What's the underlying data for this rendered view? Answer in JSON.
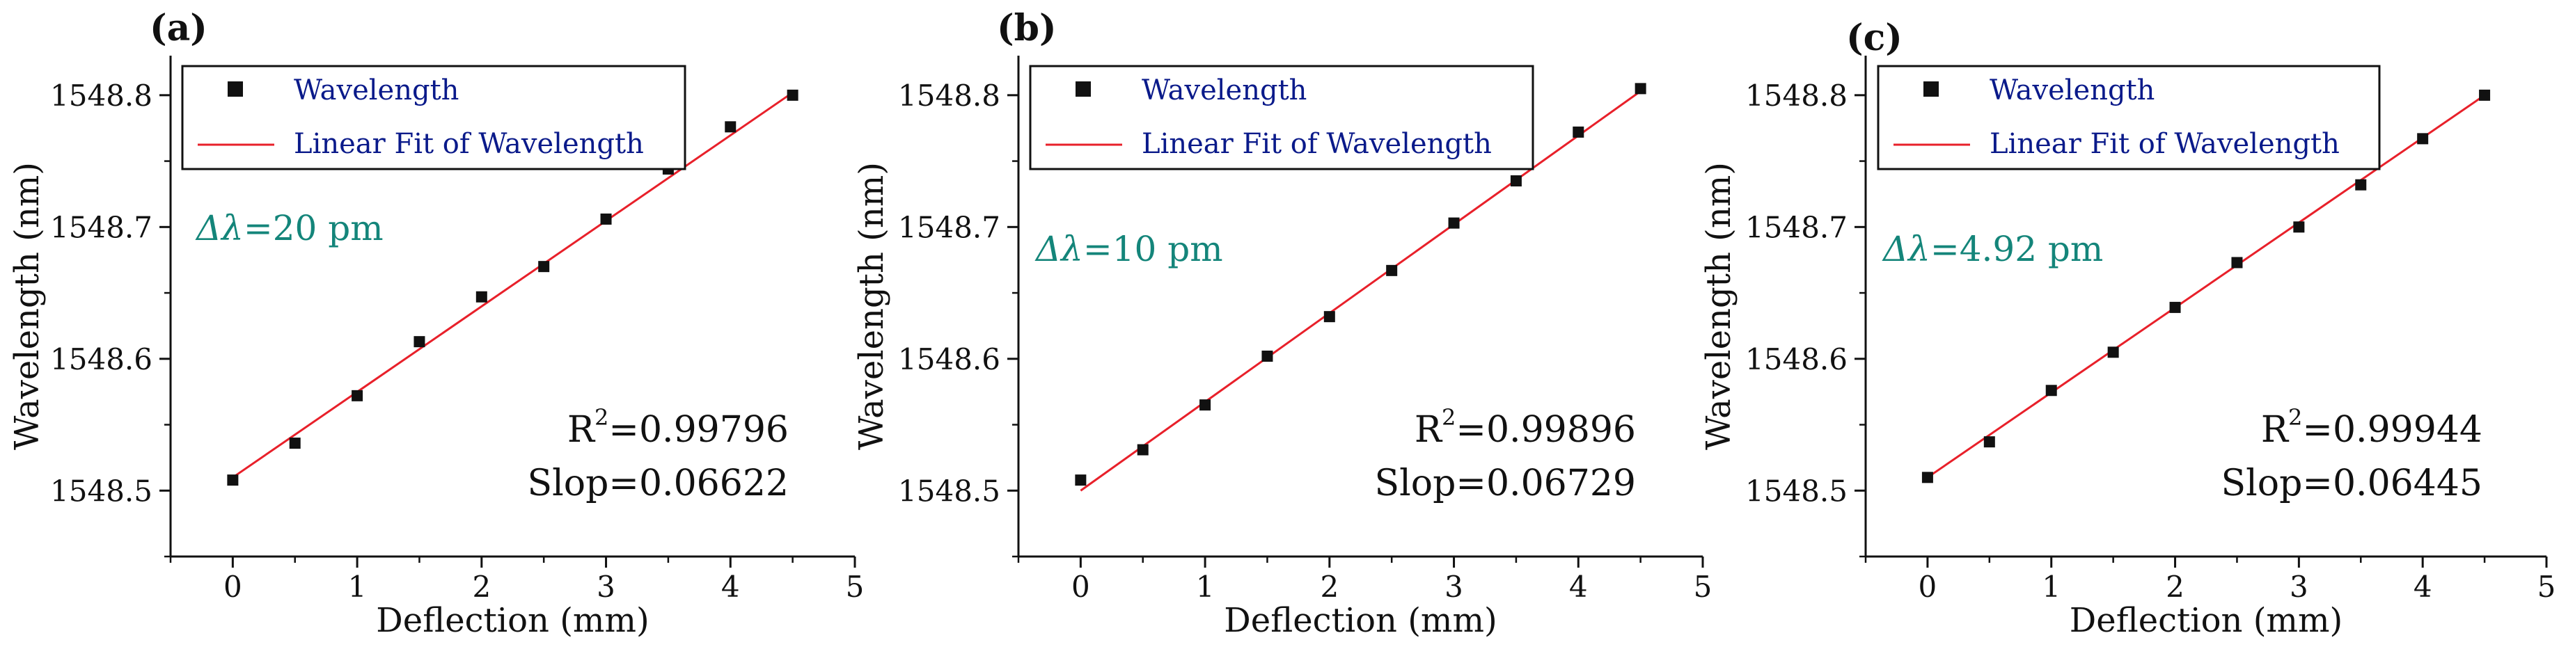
{
  "figure": {
    "panels_count": 3
  },
  "colors": {
    "points": "#111111",
    "fit_line": "#e8202a",
    "legend_text": "#0a1a8a",
    "annotation_teal": "#14857a",
    "axis": "#111111",
    "text": "#111111"
  },
  "chart_data": [
    {
      "type": "scatter",
      "panel_label": "(a)",
      "xlabel": "Deflection (mm)",
      "ylabel": "Wavelength (nm)",
      "xlim": [
        -0.5,
        5
      ],
      "ylim": [
        1548.45,
        1548.83
      ],
      "xticks": [
        0,
        1,
        2,
        3,
        4,
        5
      ],
      "xtick_labels": [
        "0",
        "1",
        "2",
        "3",
        "4",
        "5"
      ],
      "yticks": [
        1548.5,
        1548.6,
        1548.7,
        1548.8
      ],
      "ytick_labels": [
        "1548.5",
        "1548.6",
        "1548.7",
        "1548.8"
      ],
      "series": [
        {
          "name": "Wavelength",
          "kind": "scatter",
          "x": [
            0,
            0.5,
            1,
            1.5,
            2,
            2.5,
            3,
            3.5,
            4,
            4.5
          ],
          "y": [
            1548.508,
            1548.536,
            1548.572,
            1548.613,
            1548.647,
            1548.67,
            1548.706,
            1548.744,
            1548.776,
            1548.8
          ]
        },
        {
          "name": "Linear Fit of Wavelength",
          "kind": "line",
          "x": [
            0,
            4.5
          ],
          "y": [
            1548.51,
            1548.802
          ]
        }
      ],
      "annotations": {
        "delta_label": "Δλ",
        "delta_value": "=20 pm",
        "r2_prefix": "R",
        "r2_sup": "2",
        "r2_value": "=0.99796",
        "slope_text": "Slop=0.06622"
      }
    },
    {
      "type": "scatter",
      "panel_label": "(b)",
      "xlabel": "Deflection (mm)",
      "ylabel": "Wavelength (nm)",
      "xlim": [
        -0.5,
        5
      ],
      "ylim": [
        1548.45,
        1548.83
      ],
      "xticks": [
        0,
        1,
        2,
        3,
        4,
        5
      ],
      "xtick_labels": [
        "0",
        "1",
        "2",
        "3",
        "4",
        "5"
      ],
      "yticks": [
        1548.5,
        1548.6,
        1548.7,
        1548.8
      ],
      "ytick_labels": [
        "1548.5",
        "1548.6",
        "1548.7",
        "1548.8"
      ],
      "series": [
        {
          "name": "Wavelength",
          "kind": "scatter",
          "x": [
            0,
            0.5,
            1,
            1.5,
            2,
            2.5,
            3,
            3.5,
            4,
            4.5
          ],
          "y": [
            1548.508,
            1548.531,
            1548.565,
            1548.602,
            1548.632,
            1548.667,
            1548.703,
            1548.735,
            1548.772,
            1548.805
          ]
        },
        {
          "name": "Linear Fit of Wavelength",
          "kind": "line",
          "x": [
            0,
            4.5
          ],
          "y": [
            1548.5,
            1548.803
          ]
        }
      ],
      "annotations": {
        "delta_label": "Δλ",
        "delta_value": "=10 pm",
        "r2_prefix": "R",
        "r2_sup": "2",
        "r2_value": "=0.99896",
        "slope_text": "Slop=0.06729"
      }
    },
    {
      "type": "scatter",
      "panel_label": "(c)",
      "xlabel": "Deflection (mm)",
      "ylabel": "Wavelength (nm)",
      "xlim": [
        -0.5,
        5
      ],
      "ylim": [
        1548.45,
        1548.83
      ],
      "xticks": [
        0,
        1,
        2,
        3,
        4,
        5
      ],
      "xtick_labels": [
        "0",
        "1",
        "2",
        "3",
        "4",
        "5"
      ],
      "yticks": [
        1548.5,
        1548.6,
        1548.7,
        1548.8
      ],
      "ytick_labels": [
        "1548.5",
        "1548.6",
        "1548.7",
        "1548.8"
      ],
      "series": [
        {
          "name": "Wavelength",
          "kind": "scatter",
          "x": [
            0,
            0.5,
            1,
            1.5,
            2,
            2.5,
            3,
            3.5,
            4,
            4.5
          ],
          "y": [
            1548.51,
            1548.537,
            1548.576,
            1548.605,
            1548.639,
            1548.673,
            1548.7,
            1548.732,
            1548.767,
            1548.8
          ]
        },
        {
          "name": "Linear Fit of Wavelength",
          "kind": "line",
          "x": [
            0,
            4.5
          ],
          "y": [
            1548.51,
            1548.8
          ]
        }
      ],
      "annotations": {
        "delta_label": "Δλ",
        "delta_value": "=4.92 pm",
        "r2_prefix": "R",
        "r2_sup": "2",
        "r2_value": "=0.99944",
        "slope_text": "Slop=0.06445"
      }
    }
  ]
}
